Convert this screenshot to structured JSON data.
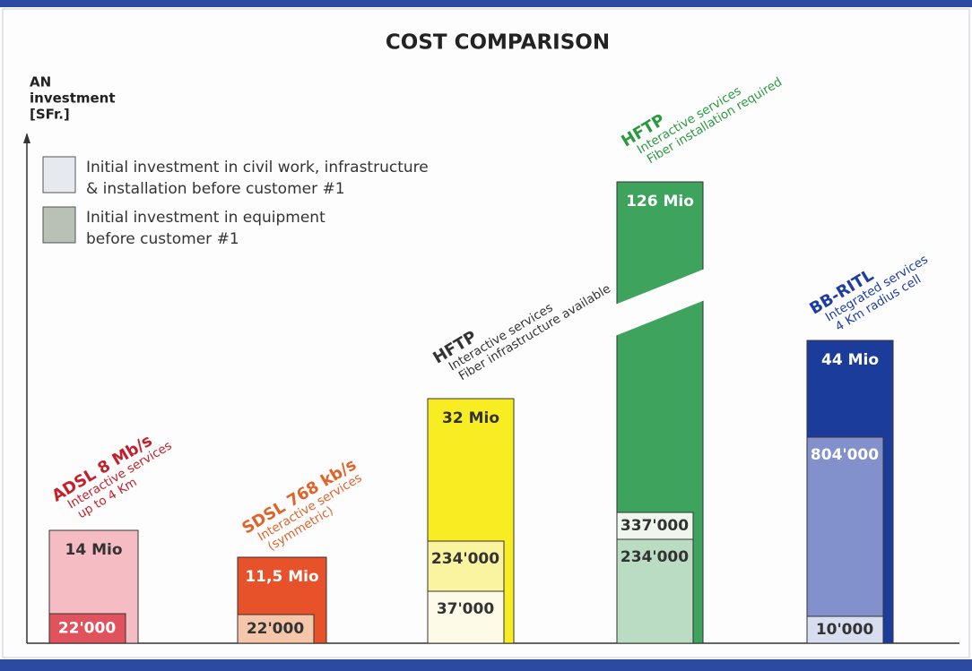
{
  "title": "COST COMPARISON",
  "axis_label": [
    "AN",
    "investment",
    "[SFr.]"
  ],
  "legend": [
    {
      "lines": [
        "Initial investment in civil work, infrastructure",
        "& installation before customer #1"
      ]
    },
    {
      "lines": [
        "Initial investment in equipment",
        "before customer #1"
      ]
    }
  ],
  "columns": [
    {
      "name": "ADSL 8 Mb/s",
      "notes": [
        "Interactive services",
        "up to 4 Km"
      ],
      "outer": "14 Mio",
      "inner": [
        "22'000"
      ]
    },
    {
      "name": "SDSL 768 kb/s",
      "notes": [
        "Interactive services",
        "(symmetric)"
      ],
      "outer": "11,5 Mio",
      "inner": [
        "22'000"
      ]
    },
    {
      "name": "HFTP",
      "notes": [
        "Interactive services",
        "Fiber infrastructure available"
      ],
      "outer": "32 Mio",
      "inner": [
        "234'000",
        "37'000"
      ]
    },
    {
      "name": "HFTP",
      "notes": [
        "Interactive services",
        "Fiber installation required"
      ],
      "outer": "126 Mio",
      "inner": [
        "337'000",
        "234'000"
      ]
    },
    {
      "name": "BB-RITL",
      "notes": [
        "Integrated services",
        "4 Km radius cell"
      ],
      "outer": "44 Mio",
      "inner": [
        "804'000",
        "10'000"
      ]
    }
  ]
}
